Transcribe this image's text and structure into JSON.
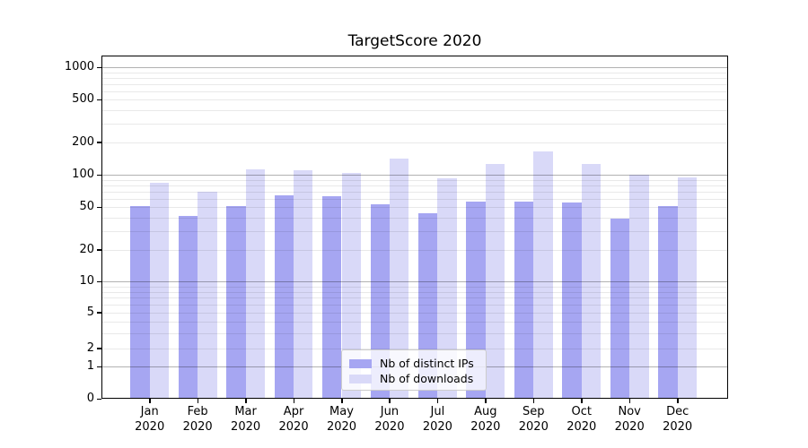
{
  "chart_data": {
    "type": "bar",
    "title": "TargetScore 2020",
    "categories": [
      "Jan 2020",
      "Feb 2020",
      "Mar 2020",
      "Apr 2020",
      "May 2020",
      "Jun 2020",
      "Jul 2020",
      "Aug 2020",
      "Sep 2020",
      "Oct 2020",
      "Nov 2020",
      "Dec 2020"
    ],
    "series": [
      {
        "name": "Nb of distinct IPs",
        "color": "#a6a6f2",
        "values": [
          51,
          41,
          51,
          64,
          63,
          53,
          44,
          56,
          56,
          55,
          39,
          51
        ]
      },
      {
        "name": "Nb of downloads",
        "color": "#d9d9f8",
        "values": [
          84,
          69,
          112,
          110,
          104,
          142,
          93,
          127,
          165,
          125,
          101,
          95
        ]
      }
    ],
    "xlabel": "",
    "ylabel": "",
    "y_scale": "asinh-log (log-like axis that includes 0)",
    "y_ticks_labeled": [
      0,
      1,
      2,
      5,
      10,
      20,
      50,
      100,
      200,
      500,
      1000
    ],
    "y_gridlines_major": [
      1,
      10,
      100,
      1000
    ],
    "y_gridlines_minor": [
      2,
      3,
      4,
      5,
      6,
      7,
      8,
      9,
      20,
      30,
      40,
      50,
      60,
      70,
      80,
      90,
      200,
      300,
      400,
      500,
      600,
      700,
      800,
      900
    ],
    "ylim": [
      0,
      1400
    ],
    "grid": true,
    "legend": {
      "position": "lower center inside plot",
      "entries": [
        "Nb of distinct IPs",
        "Nb of downloads"
      ]
    }
  },
  "colors": {
    "bar_dark": "#a6a6f2",
    "bar_light": "#d9d9f8",
    "grid_major": "#b3b3b3",
    "grid_minor": "#e9e9e9",
    "axis": "#000000",
    "background": "#ffffff"
  }
}
